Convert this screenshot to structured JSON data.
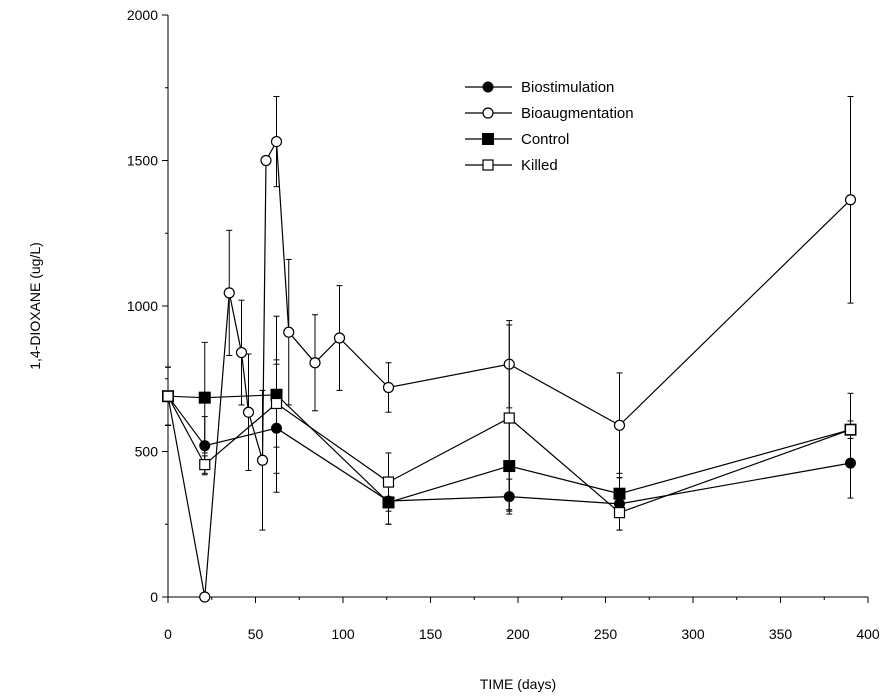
{
  "chart_data": {
    "type": "line",
    "xlabel": "TIME (days)",
    "ylabel": "1,4-DIOXANE (ug/L)",
    "xlim": [
      0,
      400
    ],
    "ylim": [
      0,
      2000
    ],
    "xticks": [
      0,
      50,
      100,
      150,
      200,
      250,
      300,
      350,
      400
    ],
    "yticks": [
      0,
      500,
      1000,
      1500,
      2000
    ],
    "grid": false,
    "legend_position": "top-right",
    "series": [
      {
        "name": "Biostimulation",
        "marker": "filled-circle",
        "points": [
          {
            "x": 0,
            "y": 690,
            "err": 100
          },
          {
            "x": 21,
            "y": 520,
            "err": 100
          },
          {
            "x": 62,
            "y": 580,
            "err": 220
          },
          {
            "x": 126,
            "y": 330,
            "err": 80
          },
          {
            "x": 195,
            "y": 345,
            "err": 60
          },
          {
            "x": 258,
            "y": 320,
            "err": 90
          },
          {
            "x": 390,
            "y": 460,
            "err": 120
          }
        ]
      },
      {
        "name": "Bioaugmentation",
        "marker": "open-circle",
        "points": [
          {
            "x": 0,
            "y": 690,
            "err": 100
          },
          {
            "x": 21,
            "y": 0,
            "err": 0
          },
          {
            "x": 35,
            "y": 1045,
            "err": 215
          },
          {
            "x": 42,
            "y": 840,
            "err": 180
          },
          {
            "x": 46,
            "y": 635,
            "err": 200
          },
          {
            "x": 54,
            "y": 470,
            "err": 240
          },
          {
            "x": 56,
            "y": 1500,
            "err": 0
          },
          {
            "x": 62,
            "y": 1565,
            "err": 155
          },
          {
            "x": 69,
            "y": 910,
            "err": 250
          },
          {
            "x": 84,
            "y": 805,
            "err": 165
          },
          {
            "x": 98,
            "y": 890,
            "err": 180
          },
          {
            "x": 126,
            "y": 720,
            "err": 85
          },
          {
            "x": 195,
            "y": 800,
            "err": 150
          },
          {
            "x": 258,
            "y": 590,
            "err": 180
          },
          {
            "x": 390,
            "y": 1365,
            "err": 355
          }
        ]
      },
      {
        "name": "Control",
        "marker": "filled-square",
        "points": [
          {
            "x": 0,
            "y": 690,
            "err": 100
          },
          {
            "x": 21,
            "y": 685,
            "err": 190
          },
          {
            "x": 62,
            "y": 695,
            "err": 270
          },
          {
            "x": 126,
            "y": 325,
            "err": 75
          },
          {
            "x": 195,
            "y": 450,
            "err": 150
          },
          {
            "x": 258,
            "y": 355,
            "err": 70
          },
          {
            "x": 390,
            "y": 575,
            "err": 30
          }
        ]
      },
      {
        "name": "Killed",
        "marker": "open-square",
        "points": [
          {
            "x": 0,
            "y": 690,
            "err": 100
          },
          {
            "x": 21,
            "y": 455,
            "err": 30
          },
          {
            "x": 62,
            "y": 665,
            "err": 150
          },
          {
            "x": 126,
            "y": 395,
            "err": 100
          },
          {
            "x": 195,
            "y": 615,
            "err": 320
          },
          {
            "x": 258,
            "y": 290,
            "err": 60
          },
          {
            "x": 390,
            "y": 575,
            "err": 125
          }
        ]
      }
    ]
  }
}
